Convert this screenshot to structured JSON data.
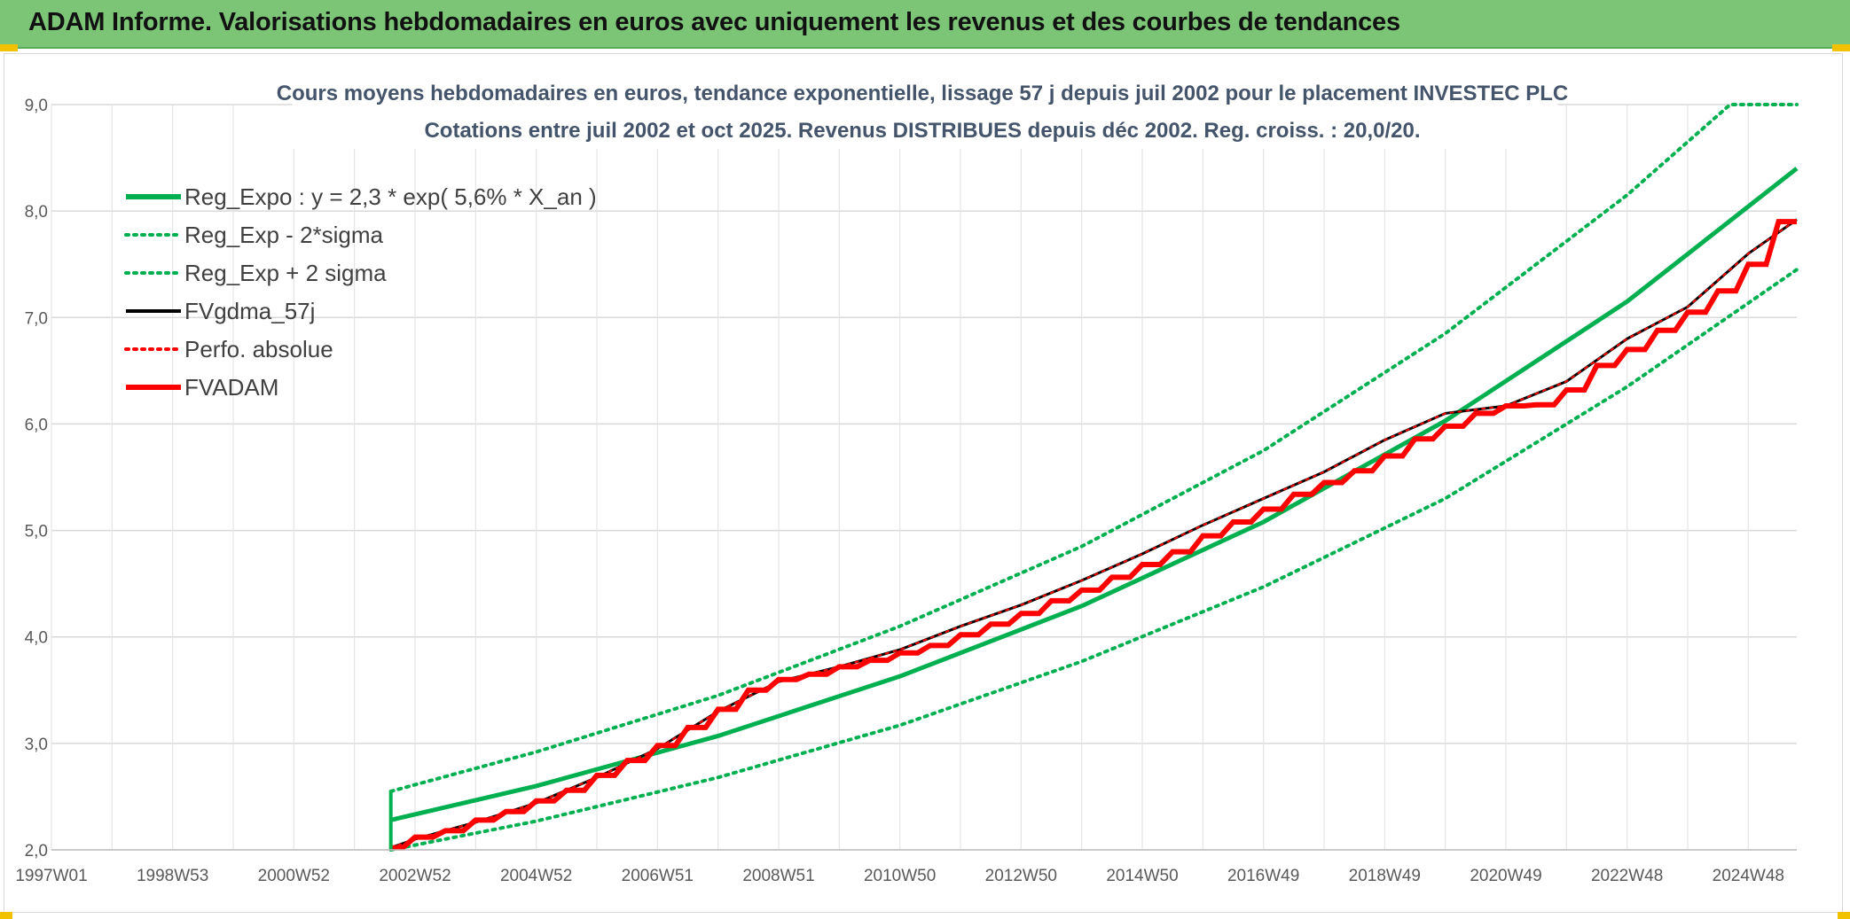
{
  "page": {
    "title": "ADAM Informe. Valorisations hebdomadaires en euros avec uniquement les revenus et des courbes de tendances"
  },
  "colors": {
    "title_bar": "#7cc576",
    "accent": "#f2c200",
    "reg_expo": "#00b050",
    "fvgdma": "#000000",
    "perfo": "#ff0000",
    "fvadam": "#ff0000",
    "grid": "#d9d9d9"
  },
  "chart_data": {
    "type": "line",
    "title": "Cours moyens hebdomadaires en euros, tendance exponentielle, lissage 57 j depuis juil 2002 pour le placement INVESTEC PLC",
    "subtitle": "Cotations entre juil 2002 et oct 2025. Revenus DISTRIBUES depuis déc 2002. Reg. croiss. : 20,0/20.",
    "xlabel": "",
    "ylabel": "",
    "ylim": [
      2.0,
      9.0
    ],
    "xlim": [
      1997.0,
      2025.8
    ],
    "y_ticks": [
      "2,0",
      "3,0",
      "4,0",
      "5,0",
      "6,0",
      "7,0",
      "8,0",
      "9,0"
    ],
    "x_ticks": [
      {
        "label": "1997W01",
        "x": 1997.0
      },
      {
        "label": "1998W53",
        "x": 1999.0
      },
      {
        "label": "2000W52",
        "x": 2001.0
      },
      {
        "label": "2002W52",
        "x": 2003.0
      },
      {
        "label": "2004W52",
        "x": 2005.0
      },
      {
        "label": "2006W51",
        "x": 2007.0
      },
      {
        "label": "2008W51",
        "x": 2009.0
      },
      {
        "label": "2010W50",
        "x": 2011.0
      },
      {
        "label": "2012W50",
        "x": 2013.0
      },
      {
        "label": "2014W50",
        "x": 2015.0
      },
      {
        "label": "2016W49",
        "x": 2017.0
      },
      {
        "label": "2018W49",
        "x": 2019.0
      },
      {
        "label": "2020W49",
        "x": 2021.0
      },
      {
        "label": "2022W48",
        "x": 2023.0
      },
      {
        "label": "2024W48",
        "x": 2025.0
      }
    ],
    "grid": true,
    "legend_position": "top-left",
    "series": [
      {
        "name": "Reg_Expo : y = 2,3 * exp( 5,6% *  X_an )",
        "style": "solid-thick",
        "color": "#00b050",
        "x": [
          2002.6,
          2005.0,
          2008.0,
          2011.0,
          2014.0,
          2017.0,
          2020.0,
          2023.0,
          2025.8
        ],
        "y": [
          2.28,
          2.6,
          3.07,
          3.63,
          4.29,
          5.08,
          6.03,
          7.15,
          8.4
        ]
      },
      {
        "name": "Reg_Exp - 2*sigma",
        "style": "dotted",
        "color": "#00b050",
        "x": [
          2002.6,
          2005.0,
          2008.0,
          2011.0,
          2014.0,
          2017.0,
          2020.0,
          2023.0,
          2025.8
        ],
        "y": [
          2.0,
          2.27,
          2.68,
          3.17,
          3.77,
          4.47,
          5.3,
          6.35,
          7.45
        ]
      },
      {
        "name": "Reg_Exp + 2 sigma",
        "style": "dotted",
        "color": "#00b050",
        "x": [
          2002.6,
          2005.0,
          2008.0,
          2011.0,
          2014.0,
          2017.0,
          2020.0,
          2023.0,
          2024.7,
          2025.8
        ],
        "y": [
          2.55,
          2.92,
          3.45,
          4.1,
          4.85,
          5.75,
          6.85,
          8.15,
          9.0,
          9.0
        ]
      },
      {
        "name": "FVgdma_57j",
        "style": "solid",
        "color": "#000000",
        "x": [
          2002.6,
          2003.0,
          2004.0,
          2005.0,
          2006.0,
          2007.0,
          2008.0,
          2009.0,
          2010.0,
          2011.0,
          2012.0,
          2013.0,
          2014.0,
          2015.0,
          2016.0,
          2017.0,
          2018.0,
          2019.0,
          2020.0,
          2021.0,
          2022.0,
          2023.0,
          2024.0,
          2025.0,
          2025.8
        ],
        "y": [
          2.02,
          2.1,
          2.26,
          2.44,
          2.68,
          2.95,
          3.3,
          3.58,
          3.72,
          3.88,
          4.1,
          4.3,
          4.53,
          4.78,
          5.05,
          5.3,
          5.55,
          5.85,
          6.1,
          6.17,
          6.4,
          6.8,
          7.1,
          7.6,
          7.92
        ]
      },
      {
        "name": "Perfo. absolue",
        "style": "dotted",
        "color": "#ff0000",
        "x": [
          2002.6,
          2003.0,
          2004.0,
          2005.0,
          2006.0,
          2007.0,
          2008.0,
          2009.0,
          2010.0,
          2011.0,
          2012.0,
          2013.0,
          2014.0,
          2015.0,
          2016.0,
          2017.0,
          2018.0,
          2019.0,
          2020.0,
          2021.0,
          2022.0,
          2023.0,
          2024.0,
          2025.0,
          2025.8
        ],
        "y": [
          2.02,
          2.1,
          2.26,
          2.44,
          2.68,
          2.95,
          3.3,
          3.58,
          3.72,
          3.88,
          4.1,
          4.3,
          4.53,
          4.78,
          5.05,
          5.3,
          5.55,
          5.85,
          6.1,
          6.17,
          6.4,
          6.8,
          7.1,
          7.6,
          7.92
        ]
      },
      {
        "name": "FVADAM",
        "style": "step-thick",
        "color": "#ff0000",
        "x": [
          2002.6,
          2003.0,
          2003.5,
          2004.0,
          2004.5,
          2005.0,
          2005.5,
          2006.0,
          2006.5,
          2007.0,
          2007.5,
          2008.0,
          2008.5,
          2009.0,
          2009.5,
          2010.0,
          2010.5,
          2011.0,
          2011.5,
          2012.0,
          2012.5,
          2013.0,
          2013.5,
          2014.0,
          2014.5,
          2015.0,
          2015.5,
          2016.0,
          2016.5,
          2017.0,
          2017.5,
          2018.0,
          2018.5,
          2019.0,
          2019.5,
          2020.0,
          2020.5,
          2021.0,
          2021.5,
          2022.0,
          2022.5,
          2023.0,
          2023.5,
          2024.0,
          2024.5,
          2025.0,
          2025.5
        ],
        "y": [
          2.02,
          2.12,
          2.18,
          2.28,
          2.36,
          2.46,
          2.56,
          2.7,
          2.84,
          2.98,
          3.15,
          3.32,
          3.5,
          3.6,
          3.65,
          3.72,
          3.78,
          3.85,
          3.92,
          4.02,
          4.12,
          4.22,
          4.34,
          4.44,
          4.56,
          4.68,
          4.8,
          4.95,
          5.08,
          5.2,
          5.34,
          5.45,
          5.56,
          5.7,
          5.86,
          5.98,
          6.1,
          6.17,
          6.18,
          6.32,
          6.55,
          6.7,
          6.88,
          7.05,
          7.25,
          7.5,
          7.9
        ]
      }
    ]
  }
}
